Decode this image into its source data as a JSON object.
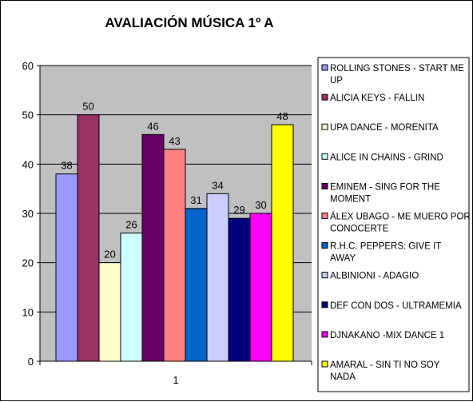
{
  "chart_data": {
    "type": "bar",
    "title": "AVALIACIÓN MÚSICA 1º A",
    "xlabel": "",
    "ylabel": "",
    "categories": [
      "1"
    ],
    "ylim": [
      0,
      60
    ],
    "yticks": [
      0,
      10,
      20,
      30,
      40,
      50,
      60
    ],
    "grid": true,
    "legend_position": "right",
    "series": [
      {
        "name": "ROLLING STONES - START ME UP",
        "values": [
          38
        ],
        "color": "#9999ff"
      },
      {
        "name": "ALICIA KEYS - FALLIN",
        "values": [
          50
        ],
        "color": "#993366"
      },
      {
        "name": "UPA DANCE - MORENITA",
        "values": [
          20
        ],
        "color": "#ffffcc"
      },
      {
        "name": "ALICE IN CHAINS - GRIND",
        "values": [
          26
        ],
        "color": "#ccffff"
      },
      {
        "name": "EMINEM - SING FOR THE MOMENT",
        "values": [
          46
        ],
        "color": "#660066"
      },
      {
        "name": "ÁLEX UBAGO - ME MUERO POR CONOCERTE",
        "values": [
          43
        ],
        "color": "#ff8080"
      },
      {
        "name": "R.H.C. PEPPERS: GIVE IT AWAY",
        "values": [
          31
        ],
        "color": "#0066cc"
      },
      {
        "name": "ALBINIONI - ADAGIO",
        "values": [
          34
        ],
        "color": "#ccccff"
      },
      {
        "name": "DEF CON DOS - ULTRAMEMIA",
        "values": [
          29
        ],
        "color": "#000080"
      },
      {
        "name": "DJNAKANO -MIX DANCE 1",
        "values": [
          30
        ],
        "color": "#ff00ff"
      },
      {
        "name": "AMARAL - SIN TI NO SOY NADA",
        "values": [
          48
        ],
        "color": "#ffff00"
      }
    ],
    "plot_background": "#c0c0c0"
  }
}
